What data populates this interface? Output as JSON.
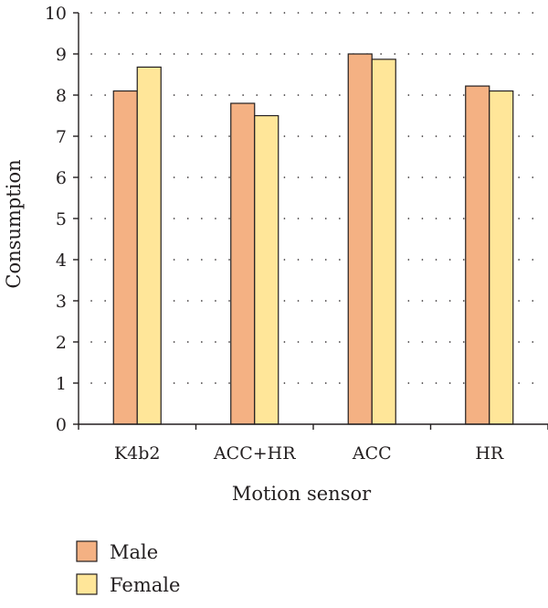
{
  "chart_data": {
    "type": "bar",
    "categories": [
      "K4b2",
      "ACC+HR",
      "ACC",
      "HR"
    ],
    "series": [
      {
        "name": "Male",
        "values": [
          8.1,
          7.8,
          9.0,
          8.22
        ]
      },
      {
        "name": "Female",
        "values": [
          8.68,
          7.5,
          8.87,
          8.1
        ]
      }
    ],
    "title": "",
    "xlabel": "Motion sensor",
    "ylabel": "Consumption",
    "ylim": [
      0,
      10
    ],
    "yticks": [
      "0",
      "1",
      "2",
      "3",
      "4",
      "5",
      "6",
      "7",
      "8",
      "9",
      "10"
    ],
    "grid": true,
    "legend_position": "bottom-left",
    "colors": [
      "#f4b183",
      "#ffe699"
    ]
  }
}
